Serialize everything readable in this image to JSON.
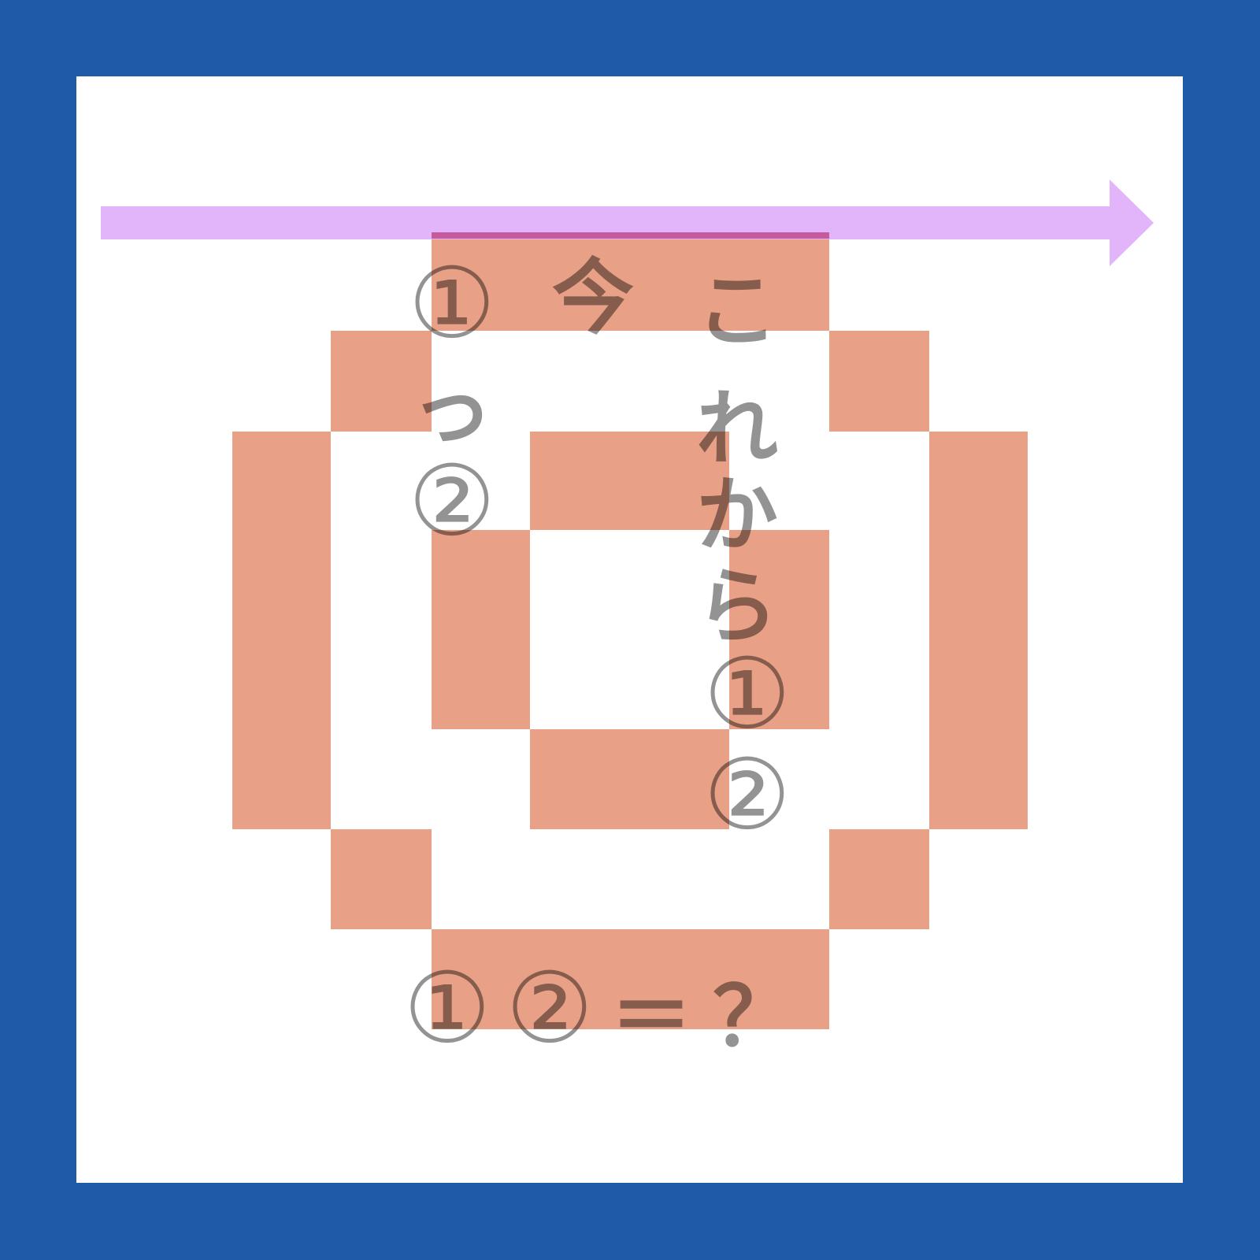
{
  "colors": {
    "frame": "#1f5aa8",
    "card": "#ffffff",
    "tile": "#e8a086",
    "arrow": "#e2b4fa",
    "arrow_overlap": "#c75a9a",
    "text": "#000000"
  },
  "left_column": {
    "mark_1": "①",
    "char_tsu": "っ",
    "mark_2": "②"
  },
  "middle_column": {
    "char_ima": "今"
  },
  "right_column": {
    "char_ko": "こ",
    "char_re": "れ",
    "char_ka": "か",
    "char_ra": "ら",
    "mark_1": "①",
    "mark_2": "②"
  },
  "bottom_line": {
    "mark_1": "①",
    "mark_2": "②",
    "equals": "＝",
    "question": "？"
  }
}
